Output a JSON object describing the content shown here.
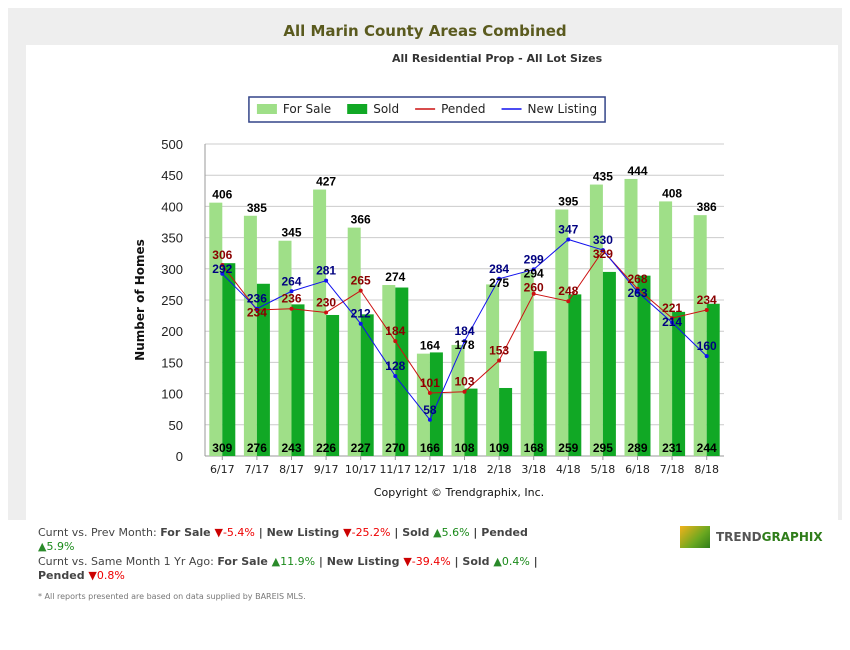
{
  "chart_data": {
    "type": "bar",
    "title": "All Marin County Areas Combined",
    "subtitle": "All Residential Prop - All Lot Sizes",
    "ylabel": "Number of Homes",
    "xlabel": "",
    "ylim": [
      0,
      500
    ],
    "yticks": [
      0,
      50,
      100,
      150,
      200,
      250,
      300,
      350,
      400,
      450,
      500
    ],
    "grid": true,
    "legend_position": "top",
    "categories": [
      "6/17",
      "7/17",
      "8/17",
      "9/17",
      "10/17",
      "11/17",
      "12/17",
      "1/18",
      "2/18",
      "3/18",
      "4/18",
      "5/18",
      "6/18",
      "7/18",
      "8/18"
    ],
    "series": [
      {
        "name": "For Sale",
        "kind": "bar",
        "color": "#9fdf88",
        "values": [
          406,
          385,
          345,
          427,
          366,
          274,
          164,
          178,
          275,
          294,
          395,
          435,
          444,
          408,
          386
        ]
      },
      {
        "name": "Sold",
        "kind": "bar",
        "color": "#11a825",
        "values": [
          309,
          276,
          243,
          226,
          227,
          270,
          166,
          108,
          109,
          168,
          259,
          295,
          289,
          231,
          244
        ]
      },
      {
        "name": "Pended",
        "kind": "line",
        "color": "#cc1111",
        "values": [
          306,
          234,
          236,
          230,
          265,
          184,
          101,
          103,
          153,
          260,
          248,
          329,
          268,
          221,
          234
        ]
      },
      {
        "name": "New Listing",
        "kind": "line",
        "color": "#1111ee",
        "values": [
          292,
          236,
          264,
          281,
          212,
          128,
          58,
          184,
          284,
          299,
          347,
          330,
          263,
          214,
          160
        ]
      }
    ],
    "copyright": "Copyright © Trendgraphix, Inc."
  },
  "stats": {
    "prev_label": "Curnt vs. Prev Month:",
    "prev": [
      {
        "label": "For Sale",
        "dir": "down",
        "value": "-5.4%"
      },
      {
        "label": "New Listing",
        "dir": "down",
        "value": "-25.2%"
      },
      {
        "label": "Sold",
        "dir": "up",
        "value": "5.6%"
      },
      {
        "label": "Pended",
        "dir": "up",
        "value": "5.9%"
      }
    ],
    "year_label": "Curnt vs. Same Month 1 Yr Ago:",
    "year": [
      {
        "label": "For Sale",
        "dir": "up",
        "value": "11.9%"
      },
      {
        "label": "New Listing",
        "dir": "down",
        "value": "-39.4%"
      },
      {
        "label": "Sold",
        "dir": "up",
        "value": "0.4%"
      },
      {
        "label": "Pended",
        "dir": "down",
        "value": "0.8%"
      }
    ],
    "footnote": "* All reports presented are based on data supplied by BAREIS MLS."
  },
  "logo": {
    "part1": "TREND",
    "part2": "GRAPHIX"
  }
}
